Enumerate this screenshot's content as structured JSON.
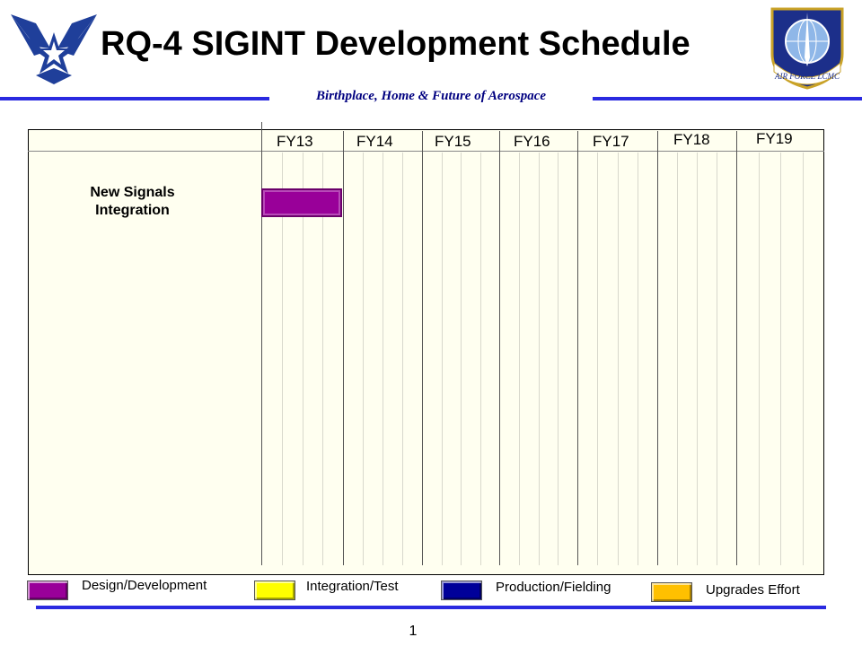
{
  "header": {
    "title": "RQ-4 SIGINT Development Schedule",
    "tagline": "Birthplace, Home & Future of Aerospace",
    "left_logo": "air-force-wings-logo",
    "right_logo": "air-force-lcmc-seal",
    "seal_text": "AIR FORCE LCMC"
  },
  "schedule": {
    "fiscal_years": [
      "FY13",
      "FY14",
      "FY15",
      "FY16",
      "FY17",
      "FY18",
      "FY19"
    ],
    "tasks": [
      {
        "label": "New Signals Integration",
        "phases": [
          {
            "type": "Design/Development",
            "start": "FY13",
            "end": "FY13"
          }
        ]
      }
    ]
  },
  "legend": [
    {
      "label": "Design/Development",
      "color": "#990099"
    },
    {
      "label": "Integration/Test",
      "color": "#ffff00"
    },
    {
      "label": "Production/Fielding",
      "color": "#000099"
    },
    {
      "label": "Upgrades Effort",
      "color": "#ffc000"
    }
  ],
  "colors": {
    "rule_blue": "#2a2ae0",
    "tagline": "#000080",
    "chart_background": "#fffff0"
  },
  "footer": {
    "page_number": "1"
  }
}
